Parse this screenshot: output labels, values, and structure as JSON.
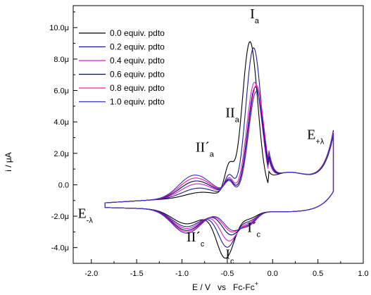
{
  "chart_data": {
    "type": "line",
    "title": "",
    "xlabel": "E / V   vs   Fc-Fc",
    "xlabel_sup": "+",
    "ylabel": "i / μA",
    "xlim": [
      -2.2,
      1.0
    ],
    "ylim": [
      -5.0,
      11.4
    ],
    "x_ticks": [
      -2.0,
      -1.5,
      -1.0,
      -0.5,
      0.0,
      0.5,
      1.0
    ],
    "x_tick_labels": [
      "-2.0",
      "-1.5",
      "-1.0",
      "-0.5",
      "0.0",
      "0.5",
      "1.0"
    ],
    "y_ticks": [
      -4,
      -2,
      0,
      2,
      4,
      6,
      8,
      10
    ],
    "y_tick_labels": [
      "-4.0μ",
      "-2.0μ",
      "0.0",
      "2.0μ",
      "4.0μ",
      "6.0μ",
      "8.0μ",
      "10.0μ"
    ],
    "legend_position": "top-left",
    "grid": false,
    "series": [
      {
        "name": "0.0 equiv. pdto",
        "color": "#000000",
        "ipa": 9.7,
        "epa": -0.25,
        "ipc": -3.0,
        "epc": -0.52,
        "shoulder": 0.0,
        "prepeak": 0.3,
        "cshift": 0.0,
        "ia2": 1.2,
        "ic2": 0.0,
        "tail": 3.3
      },
      {
        "name": "0.2 equiv. pdto",
        "color": "#1a1a9e",
        "ipa": 9.3,
        "epa": -0.21,
        "ipc": -2.3,
        "epc": -0.5,
        "shoulder": 0.2,
        "prepeak": 0.5,
        "cshift": 0.3,
        "ia2": 0.6,
        "ic2": 0.4,
        "tail": 3.4
      },
      {
        "name": "0.4 equiv. pdto",
        "color": "#d020d0",
        "ipa": 7.1,
        "epa": -0.2,
        "ipc": -1.9,
        "epc": -0.48,
        "shoulder": 0.4,
        "prepeak": 0.7,
        "cshift": 0.5,
        "ia2": 0.4,
        "ic2": 0.6,
        "tail": 3.5
      },
      {
        "name": "0.6 equiv. pdto",
        "color": "#000066",
        "ipa": 6.8,
        "epa": -0.19,
        "ipc": -1.5,
        "epc": -0.46,
        "shoulder": 0.6,
        "prepeak": 0.8,
        "cshift": 0.7,
        "ia2": 0.3,
        "ic2": 0.8,
        "tail": 3.6
      },
      {
        "name": "0.8 equiv. pdto",
        "color": "#ff1493",
        "ipa": 6.9,
        "epa": -0.18,
        "ipc": -1.3,
        "epc": -0.45,
        "shoulder": 0.8,
        "prepeak": 0.9,
        "cshift": 0.85,
        "ia2": 0.2,
        "ic2": 0.9,
        "tail": 3.5
      },
      {
        "name": "1.0 equiv. pdto",
        "color": "#3333cc",
        "ipa": 6.5,
        "epa": -0.18,
        "ipc": -1.2,
        "epc": -0.44,
        "shoulder": 1.0,
        "prepeak": 1.0,
        "cshift": 1.0,
        "ia2": 0.2,
        "ic2": 1.0,
        "tail": 3.4
      }
    ],
    "annotations": [
      {
        "id": "Ia",
        "main": "I",
        "sub": "a",
        "x": -0.25,
        "y": 10.6
      },
      {
        "id": "IIa",
        "main": "II",
        "sub": "a",
        "x": -0.52,
        "y": 4.3
      },
      {
        "id": "IIpa",
        "main": "II´",
        "sub": "a",
        "x": -0.85,
        "y": 2.1
      },
      {
        "id": "Eplus",
        "main": "E",
        "sub": "+λ",
        "x": 0.38,
        "y": 2.9
      },
      {
        "id": "Eminus",
        "main": "E",
        "sub": "-λ",
        "x": -2.15,
        "y": -2.1
      },
      {
        "id": "IIpc",
        "main": "II´",
        "sub": "c",
        "x": -0.95,
        "y": -3.6
      },
      {
        "id": "Ic",
        "main": "I",
        "sub": "c",
        "x": -0.52,
        "y": -4.7
      },
      {
        "id": "Ipc",
        "main": "I´",
        "sub": "c",
        "x": -0.28,
        "y": -3.0
      }
    ]
  }
}
